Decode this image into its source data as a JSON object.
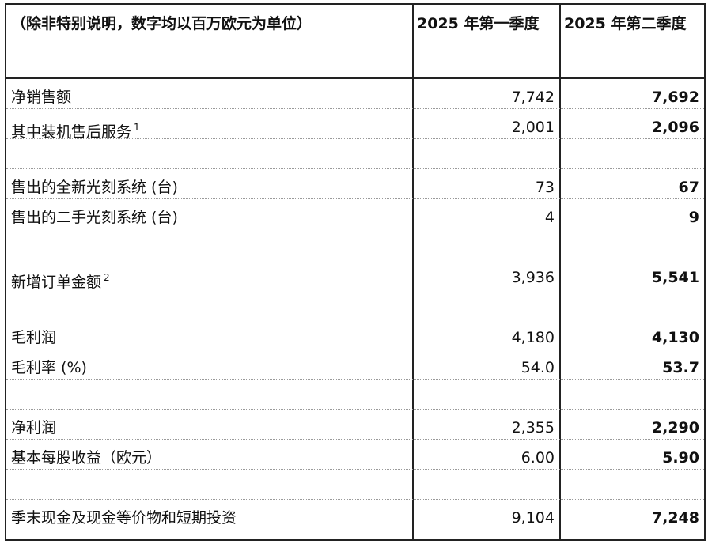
{
  "header": {
    "description": "（除非特别说明，数字均以百万欧元为单位）",
    "col1": "2025 年第一季度",
    "col2": "2025 年第二季度"
  },
  "rows": [
    {
      "label": "净销售额",
      "sup": "",
      "q1": "7,742",
      "q2": "7,692"
    },
    {
      "label": "其中装机售后服务",
      "sup": "1",
      "q1": "2,001",
      "q2": "2,096"
    },
    {
      "label": "",
      "sup": "",
      "q1": "",
      "q2": ""
    },
    {
      "label": "售出的全新光刻系统 (台)",
      "sup": "",
      "q1": "73",
      "q2": "67"
    },
    {
      "label": "售出的二手光刻系统 (台)",
      "sup": "",
      "q1": "4",
      "q2": "9"
    },
    {
      "label": "",
      "sup": "",
      "q1": "",
      "q2": ""
    },
    {
      "label": "新增订单金额",
      "sup": "2",
      "q1": "3,936",
      "q2": "5,541"
    },
    {
      "label": "",
      "sup": "",
      "q1": "",
      "q2": ""
    },
    {
      "label": "毛利润",
      "sup": "",
      "q1": "4,180",
      "q2": "4,130"
    },
    {
      "label": "毛利率 (%)",
      "sup": "",
      "q1": "54.0",
      "q2": "53.7"
    },
    {
      "label": "",
      "sup": "",
      "q1": "",
      "q2": ""
    },
    {
      "label": "净利润",
      "sup": "",
      "q1": "2,355",
      "q2": "2,290"
    },
    {
      "label": "基本每股收益（欧元）",
      "sup": "",
      "q1": "6.00",
      "q2": "5.90"
    },
    {
      "label": "",
      "sup": "",
      "q1": "",
      "q2": ""
    },
    {
      "label": "季末现金及现金等价物和短期投资",
      "sup": "",
      "q1": "9,104",
      "q2": "7,248"
    }
  ]
}
